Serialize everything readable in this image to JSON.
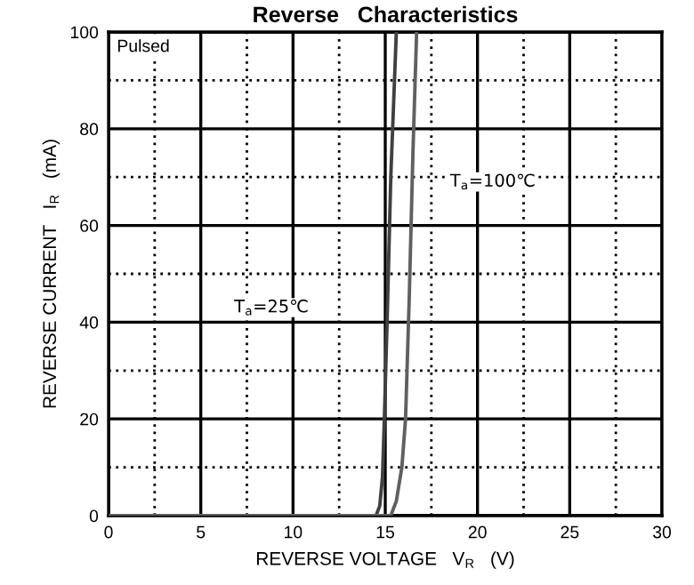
{
  "chart_data": {
    "type": "line",
    "title": "Reverse   Characteristics",
    "xlabel": "REVERSE VOLTAGE   V$_{R}$   (V)",
    "ylabel": "REVERSE CURRENT   I$_{R}$   (mA)",
    "series": [
      {
        "color": "#404040",
        "x": [
          0,
          14.5,
          14.7,
          14.85,
          14.95,
          15.1,
          15.3,
          15.6
        ],
        "values": [
          0,
          0,
          2,
          8,
          20,
          40,
          70,
          100
        ]
      },
      {
        "color": "#606060",
        "x": [
          0,
          15.3,
          15.6,
          15.9,
          16.1,
          16.3,
          16.5,
          16.7
        ],
        "values": [
          0,
          0,
          3,
          10,
          20,
          45,
          75,
          100
        ]
      }
    ],
    "annotations": [
      "Pulsed",
      "T$_{a}$=25℃",
      "T$_{a}$=100℃"
    ],
    "xlim": [
      0,
      30
    ],
    "ylim": [
      0,
      100
    ],
    "xticks": [
      0,
      5,
      10,
      15,
      20,
      25,
      30
    ],
    "yticks": [
      0,
      20,
      40,
      60,
      80,
      100
    ],
    "grid": true,
    "line_style": "solid",
    "marker": "none"
  }
}
